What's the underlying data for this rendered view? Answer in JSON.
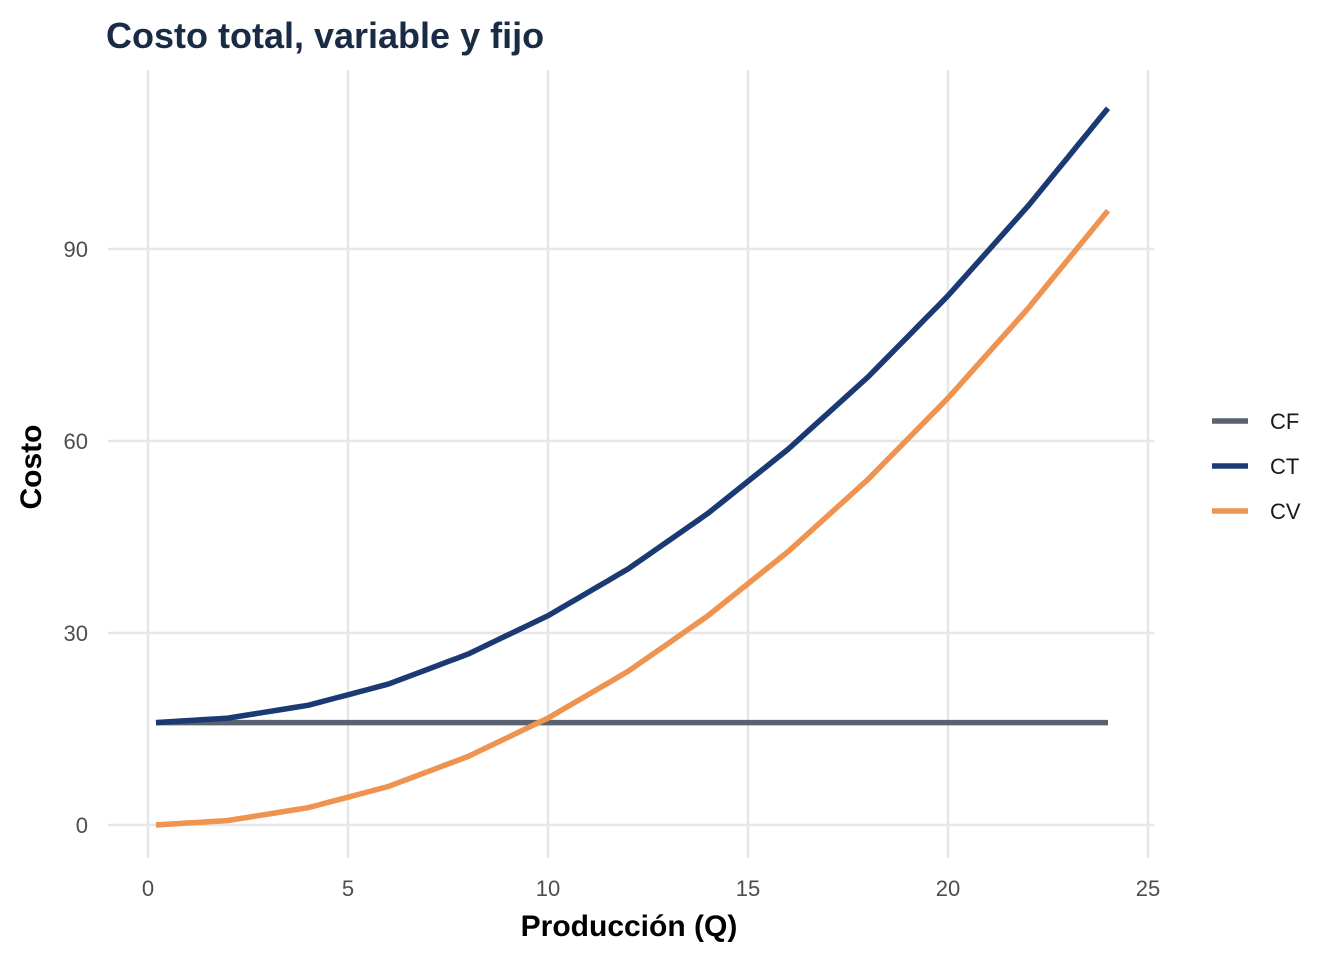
{
  "chart_data": {
    "type": "line",
    "title": "Costo total, variable y fijo",
    "xlabel": "Producción (Q)",
    "ylabel": "Costo",
    "xlim": [
      0,
      25
    ],
    "ylim": [
      0,
      110
    ],
    "xticks": [
      0,
      5,
      10,
      15,
      20,
      25
    ],
    "yticks": [
      0,
      30,
      60,
      90
    ],
    "grid": true,
    "legend_position": "right",
    "title_color": "#1a2b45",
    "series": [
      {
        "name": "CF",
        "color": "#5a6270",
        "x": [
          0.2,
          2,
          4,
          6,
          8,
          10,
          12,
          14,
          16,
          18,
          20,
          22,
          24
        ],
        "y": [
          16,
          16,
          16,
          16,
          16,
          16,
          16,
          16,
          16,
          16,
          16,
          16,
          16
        ]
      },
      {
        "name": "CT",
        "color": "#1b3a73",
        "x": [
          0.2,
          2,
          4,
          6,
          8,
          10,
          12,
          14,
          16,
          18,
          20,
          22,
          24
        ],
        "y": [
          16.0,
          16.7,
          18.7,
          22.0,
          26.7,
          32.7,
          40.0,
          48.7,
          58.7,
          70.0,
          82.7,
          96.7,
          112.0
        ]
      },
      {
        "name": "CV",
        "color": "#ef9350",
        "x": [
          0.2,
          2,
          4,
          6,
          8,
          10,
          12,
          14,
          16,
          18,
          20,
          22,
          24
        ],
        "y": [
          0.0,
          0.7,
          2.7,
          6.0,
          10.7,
          16.7,
          24.0,
          32.7,
          42.7,
          54.0,
          66.7,
          80.7,
          96.0
        ]
      }
    ]
  }
}
